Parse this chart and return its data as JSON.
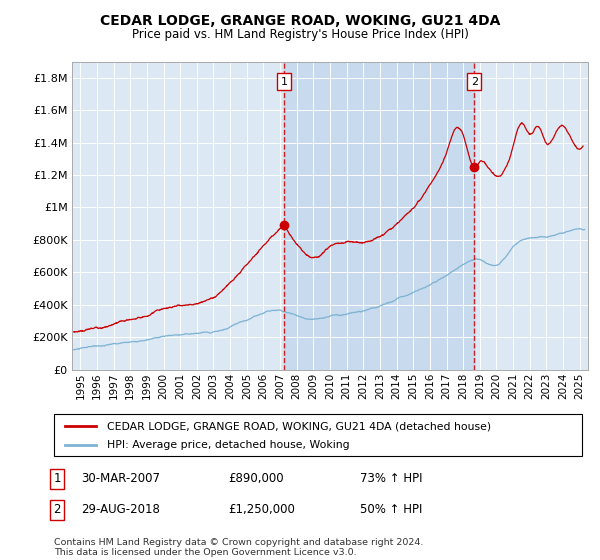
{
  "title": "CEDAR LODGE, GRANGE ROAD, WOKING, GU21 4DA",
  "subtitle": "Price paid vs. HM Land Registry's House Price Index (HPI)",
  "hpi_label": "HPI: Average price, detached house, Woking",
  "property_label": "CEDAR LODGE, GRANGE ROAD, WOKING, GU21 4DA (detached house)",
  "sale1_date": "30-MAR-2007",
  "sale1_price": 890000,
  "sale1_hpi": "73% ↑ HPI",
  "sale2_date": "29-AUG-2018",
  "sale2_price": 1250000,
  "sale2_hpi": "50% ↑ HPI",
  "sale1_x": 2007.25,
  "sale2_x": 2018.67,
  "ylim": [
    0,
    1900000
  ],
  "xlim": [
    1994.5,
    2025.5
  ],
  "plot_bg": "#dce9f5",
  "shade_color": "#c5d9ee",
  "hpi_color": "#7fb3d3",
  "property_color": "#cc0000",
  "vline_color": "#cc0000",
  "footer": "Contains HM Land Registry data © Crown copyright and database right 2024.\nThis data is licensed under the Open Government Licence v3.0.",
  "yticks": [
    0,
    200000,
    400000,
    600000,
    800000,
    1000000,
    1200000,
    1400000,
    1600000,
    1800000
  ],
  "ytick_labels": [
    "£0",
    "£200K",
    "£400K",
    "£600K",
    "£800K",
    "£1M",
    "£1.2M",
    "£1.4M",
    "£1.6M",
    "£1.8M"
  ],
  "xtick_years": [
    1995,
    1996,
    1997,
    1998,
    1999,
    2000,
    2001,
    2002,
    2003,
    2004,
    2005,
    2006,
    2007,
    2008,
    2009,
    2010,
    2011,
    2012,
    2013,
    2014,
    2015,
    2016,
    2017,
    2018,
    2019,
    2020,
    2021,
    2022,
    2023,
    2024,
    2025
  ]
}
